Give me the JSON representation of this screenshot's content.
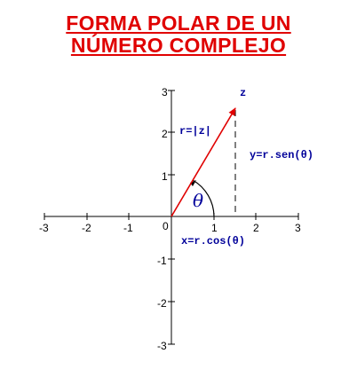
{
  "title": {
    "line1": "FORMA POLAR DE UN",
    "line2": "NÚMERO COMPLEJO"
  },
  "axes": {
    "x_ticks": [
      "-3",
      "-2",
      "-1",
      "0",
      "1",
      "2",
      "3"
    ],
    "y_ticks": [
      "3",
      "2",
      "1",
      "-1",
      "-2",
      "-3"
    ]
  },
  "labels": {
    "z": "z",
    "r": "r=|z|",
    "y": "y=r.sen(θ)",
    "x": "x=r.cos(θ)",
    "theta": "θ"
  },
  "vector": {
    "x": 1.5,
    "y": 2.6
  },
  "colors": {
    "title": "#e00000",
    "vector": "#e00000",
    "labels": "#00009a",
    "axes": "#000000"
  }
}
